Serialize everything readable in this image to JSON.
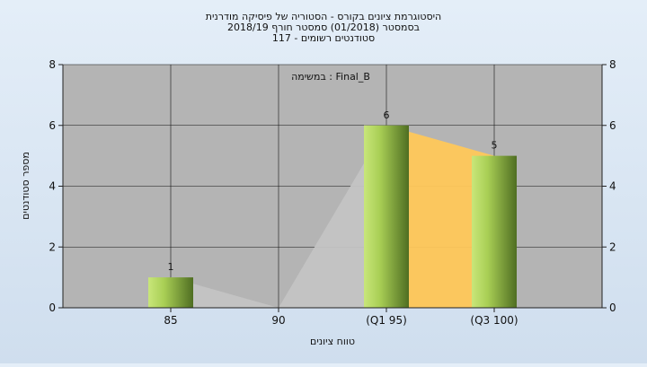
{
  "chart_data": {
    "type": "bar",
    "title_lines": [
      "היסטוגרמת ציונים בקורס - הסטוריה של פיסיקה מודרנית",
      "בסמסטר  (01/2018)  סמסטר חורף 2018/19",
      "סטודנטים רשומים - 117"
    ],
    "legend_text": "במשימה : Final_B",
    "xlabel": "טווח ציונים",
    "ylabel": "מספר סטודנטים",
    "categories": [
      "85",
      "90",
      "(Q1 95)",
      "(Q3 100)"
    ],
    "values": [
      1,
      0,
      6,
      5
    ],
    "value_labels": [
      "1",
      "",
      "6",
      "5"
    ],
    "ylim": [
      0,
      8
    ],
    "yticks": [
      "0",
      "2",
      "4",
      "6",
      "8"
    ],
    "grid": true,
    "colors": {
      "plot_bg": "#b4b4b4",
      "bar_light": "#c8e67a",
      "bar_dark": "#4f6e22",
      "area_orange": "#ffc85a",
      "area_grey": "#c4c4c4"
    }
  }
}
